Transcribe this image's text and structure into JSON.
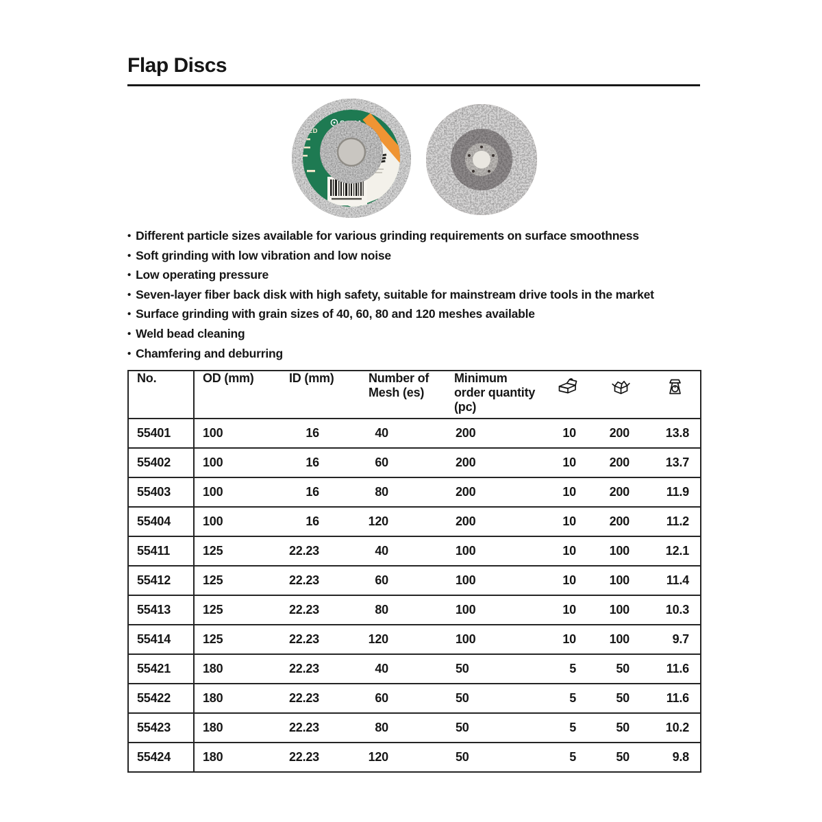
{
  "page": {
    "title": "Flap Discs"
  },
  "images": {
    "front_disc": {
      "brand": "SATA",
      "model": "PED"
    }
  },
  "features": [
    "Different particle sizes available for various grinding requirements on surface smoothness",
    "Soft grinding with low vibration and low noise",
    "Low operating pressure",
    "Seven-layer fiber back disk with high safety, suitable for mainstream drive tools in the market",
    "Surface grinding with grain sizes of 40, 60, 80 and 120 meshes available",
    "Weld bead cleaning",
    "Chamfering and deburring"
  ],
  "table": {
    "headers": {
      "no": "No.",
      "od": "OD (mm)",
      "id": "ID (mm)",
      "mesh": "Number of Mesh (es)",
      "moq": "Minimum order quantity (pc)"
    },
    "icon_columns": [
      {
        "icon": "inner-box-icon",
        "meaning": "inner box quantity"
      },
      {
        "icon": "carton-icon",
        "meaning": "carton quantity"
      },
      {
        "icon": "scale-icon",
        "meaning": "weight"
      }
    ],
    "rows": [
      [
        "55401",
        "100",
        "16",
        "40",
        "200",
        "10",
        "200",
        "13.8"
      ],
      [
        "55402",
        "100",
        "16",
        "60",
        "200",
        "10",
        "200",
        "13.7"
      ],
      [
        "55403",
        "100",
        "16",
        "80",
        "200",
        "10",
        "200",
        "11.9"
      ],
      [
        "55404",
        "100",
        "16",
        "120",
        "200",
        "10",
        "200",
        "11.2"
      ],
      [
        "55411",
        "125",
        "22.23",
        "40",
        "100",
        "10",
        "100",
        "12.1"
      ],
      [
        "55412",
        "125",
        "22.23",
        "60",
        "100",
        "10",
        "100",
        "11.4"
      ],
      [
        "55413",
        "125",
        "22.23",
        "80",
        "100",
        "10",
        "100",
        "10.3"
      ],
      [
        "55414",
        "125",
        "22.23",
        "120",
        "100",
        "10",
        "100",
        "9.7"
      ],
      [
        "55421",
        "180",
        "22.23",
        "40",
        "50",
        "5",
        "50",
        "11.6"
      ],
      [
        "55422",
        "180",
        "22.23",
        "60",
        "50",
        "5",
        "50",
        "11.6"
      ],
      [
        "55423",
        "180",
        "22.23",
        "80",
        "50",
        "5",
        "50",
        "10.2"
      ],
      [
        "55424",
        "180",
        "22.23",
        "120",
        "50",
        "5",
        "50",
        "9.8"
      ]
    ]
  },
  "colors": {
    "label_green": "#1e7a52",
    "label_orange": "#ef9433",
    "text": "#161616"
  }
}
